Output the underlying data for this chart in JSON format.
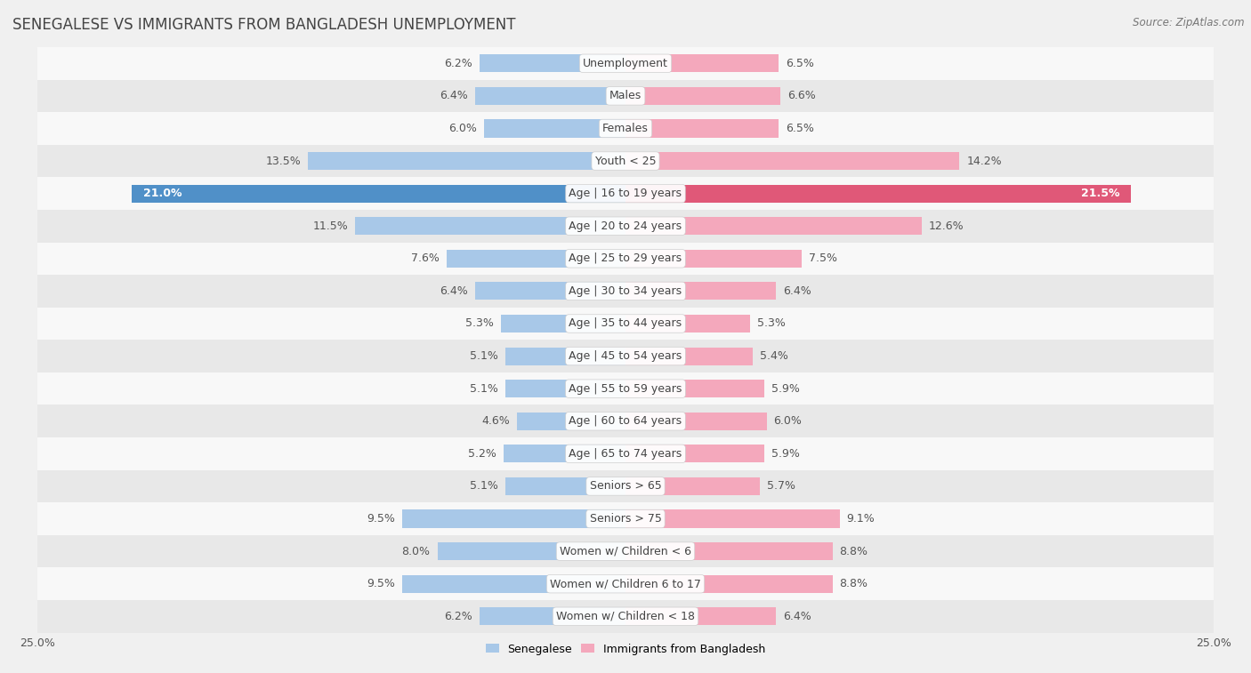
{
  "title": "SENEGALESE VS IMMIGRANTS FROM BANGLADESH UNEMPLOYMENT",
  "source": "Source: ZipAtlas.com",
  "categories": [
    "Unemployment",
    "Males",
    "Females",
    "Youth < 25",
    "Age | 16 to 19 years",
    "Age | 20 to 24 years",
    "Age | 25 to 29 years",
    "Age | 30 to 34 years",
    "Age | 35 to 44 years",
    "Age | 45 to 54 years",
    "Age | 55 to 59 years",
    "Age | 60 to 64 years",
    "Age | 65 to 74 years",
    "Seniors > 65",
    "Seniors > 75",
    "Women w/ Children < 6",
    "Women w/ Children 6 to 17",
    "Women w/ Children < 18"
  ],
  "senegalese": [
    6.2,
    6.4,
    6.0,
    13.5,
    21.0,
    11.5,
    7.6,
    6.4,
    5.3,
    5.1,
    5.1,
    4.6,
    5.2,
    5.1,
    9.5,
    8.0,
    9.5,
    6.2
  ],
  "bangladesh": [
    6.5,
    6.6,
    6.5,
    14.2,
    21.5,
    12.6,
    7.5,
    6.4,
    5.3,
    5.4,
    5.9,
    6.0,
    5.9,
    5.7,
    9.1,
    8.8,
    8.8,
    6.4
  ],
  "senegalese_color": "#a8c8e8",
  "bangladesh_color": "#f4a8bc",
  "highlight_senegalese_color": "#5090c8",
  "highlight_bangladesh_color": "#e05878",
  "xlim": 25.0,
  "bar_height": 0.55,
  "background_color": "#f0f0f0",
  "row_color_odd": "#f8f8f8",
  "row_color_even": "#e8e8e8",
  "legend_label_senegalese": "Senegalese",
  "legend_label_bangladesh": "Immigrants from Bangladesh",
  "title_fontsize": 12,
  "label_fontsize": 9,
  "value_fontsize": 9,
  "source_fontsize": 8.5,
  "highlight_rows": [
    4
  ]
}
